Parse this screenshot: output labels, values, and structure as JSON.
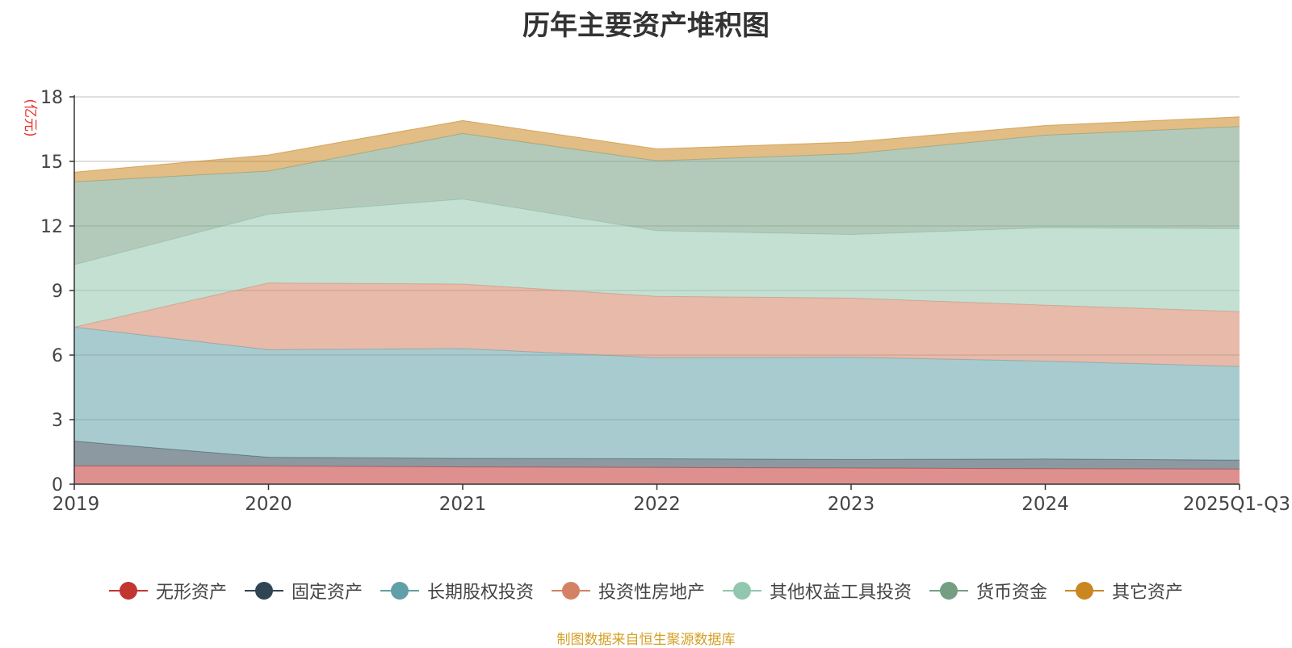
{
  "chart_data": {
    "type": "area",
    "stacked": true,
    "title": "历年主要资产堆积图",
    "ylabel": "(亿元)",
    "x": [
      "2019",
      "2020",
      "2021",
      "2022",
      "2023",
      "2024",
      "2025Q1-Q3"
    ],
    "yticks": [
      "0",
      "3",
      "6",
      "9",
      "12",
      "15",
      "18"
    ],
    "ylim": [
      0,
      18
    ],
    "grid": true,
    "legend_position": "bottom",
    "series": [
      {
        "name": "无形资产",
        "color": "#c23531",
        "values": [
          0.85,
          0.85,
          0.8,
          0.78,
          0.75,
          0.72,
          0.7
        ]
      },
      {
        "name": "固定资产",
        "color": "#2f4554",
        "values": [
          1.15,
          0.4,
          0.4,
          0.4,
          0.4,
          0.45,
          0.42
        ]
      },
      {
        "name": "长期股权投资",
        "color": "#61a0a8",
        "values": [
          5.3,
          5.0,
          5.1,
          4.7,
          4.75,
          4.55,
          4.35
        ]
      },
      {
        "name": "投资性房地产",
        "color": "#d48265",
        "values": [
          0.0,
          3.1,
          3.0,
          2.85,
          2.75,
          2.6,
          2.55
        ]
      },
      {
        "name": "其他权益工具投资",
        "color": "#91c7ae",
        "values": [
          2.9,
          3.2,
          3.95,
          3.05,
          2.95,
          3.6,
          3.85
        ]
      },
      {
        "name": "货币资金",
        "color": "#749f83",
        "values": [
          3.85,
          2.0,
          3.05,
          3.25,
          3.75,
          4.3,
          4.75
        ]
      },
      {
        "name": "其它资产",
        "color": "#ca8622",
        "values": [
          0.45,
          0.75,
          0.6,
          0.55,
          0.55,
          0.45,
          0.45
        ]
      }
    ]
  },
  "source_note": "制图数据来自恒生聚源数据库"
}
